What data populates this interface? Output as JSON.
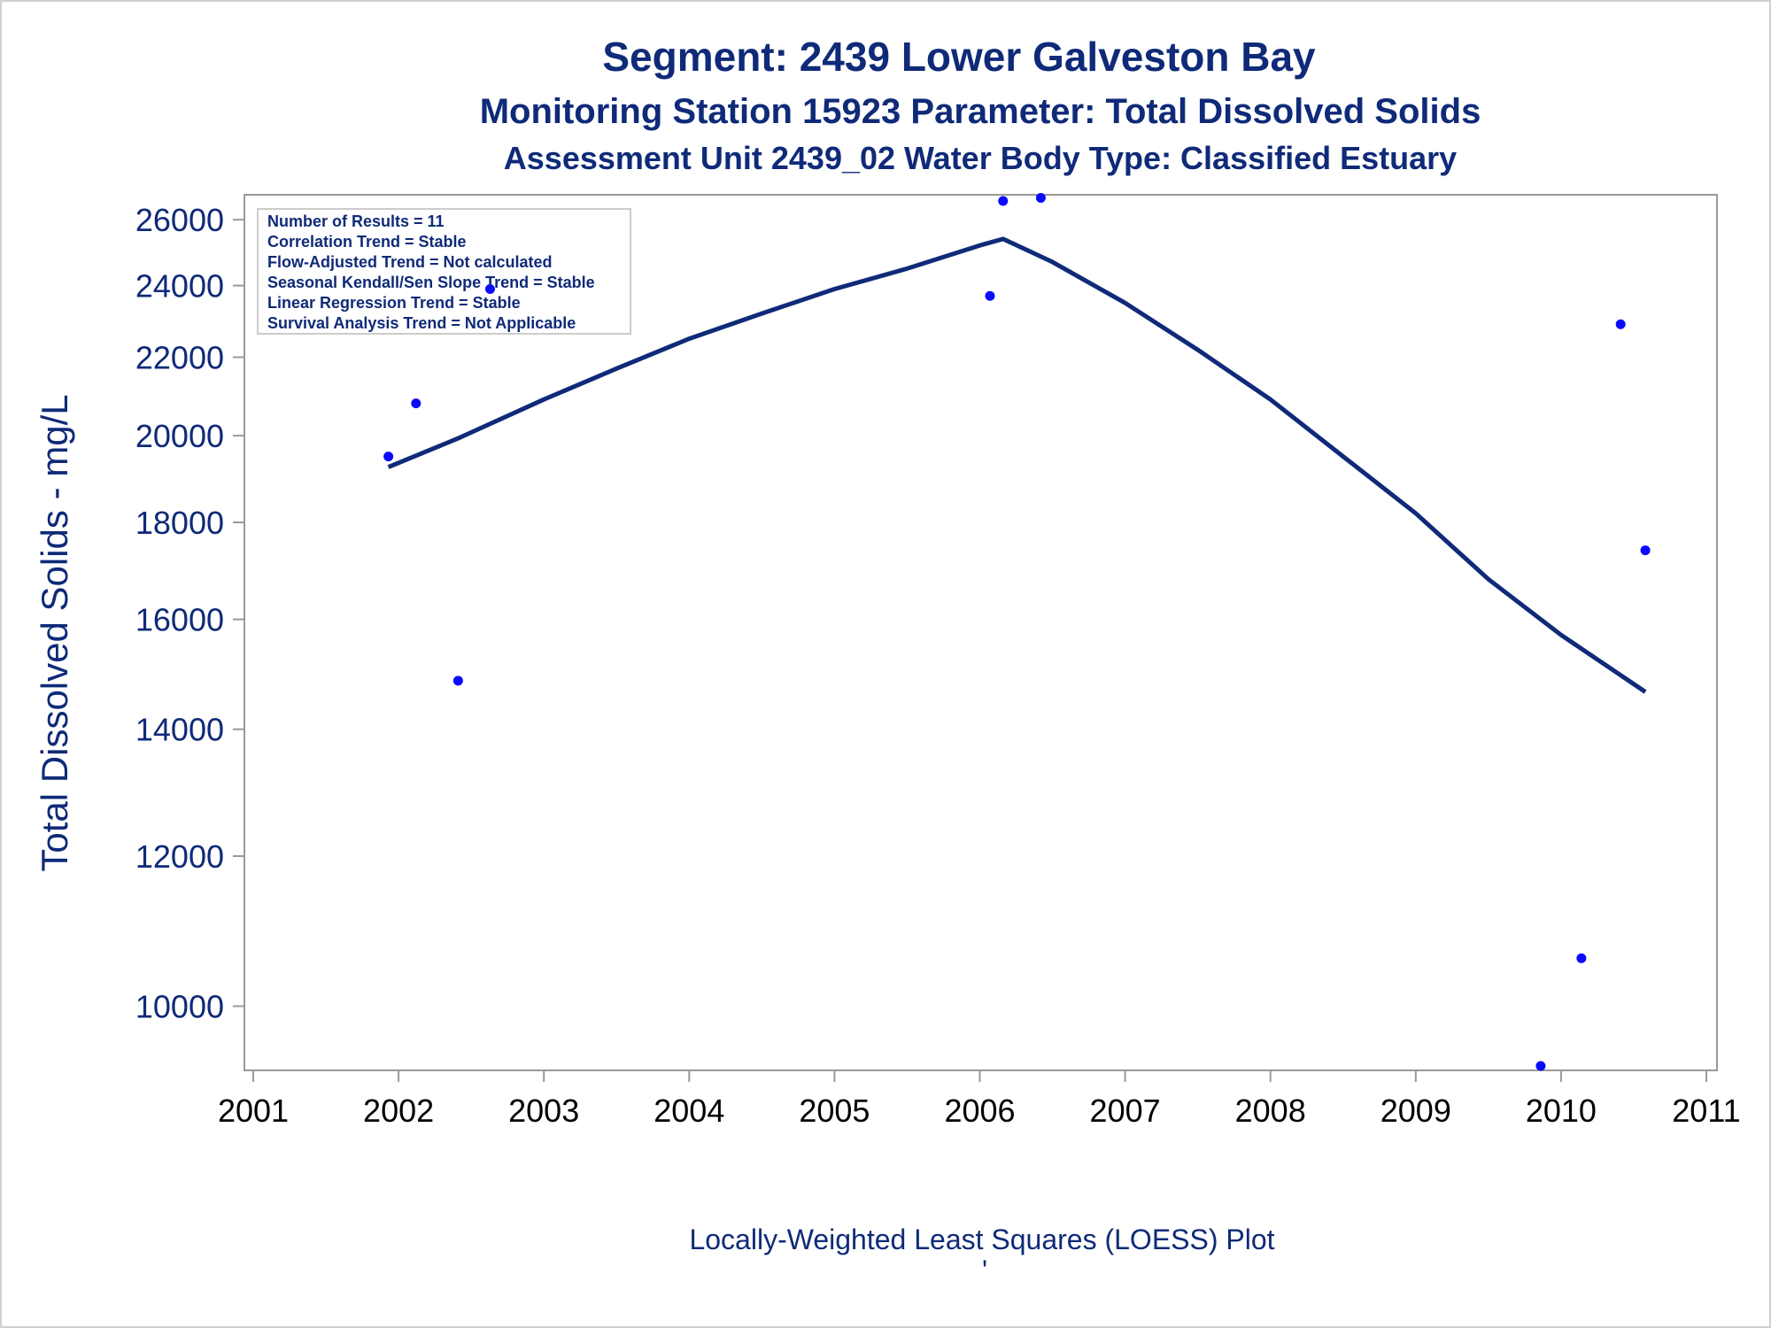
{
  "chart_data": {
    "type": "scatter",
    "title": "Segment: 2439  Lower Galveston Bay",
    "subtitle": "Monitoring Station 15923 Parameter: Total Dissolved Solids",
    "subtitle2": "Assessment Unit 2439_02   Water Body Type: Classified Estuary",
    "xlabel": "",
    "ylabel": "Total Dissolved Solids - mg/L",
    "footer": "Locally-Weighted Least Squares (LOESS) Plot",
    "footer_mark": "'",
    "y_scale": "log",
    "xlim": [
      2001,
      2011
    ],
    "ylim": [
      9250,
      26800
    ],
    "x_ticks": [
      "2001",
      "2002",
      "2003",
      "2004",
      "2005",
      "2006",
      "2007",
      "2008",
      "2009",
      "2010",
      "2011"
    ],
    "y_ticks": [
      10000,
      12000,
      14000,
      16000,
      18000,
      20000,
      22000,
      24000,
      26000
    ],
    "grid": false,
    "legend_position": "top-left",
    "stats": [
      "Number of Results = 11",
      "Correlation Trend = Stable",
      "Flow-Adjusted Trend = Not calculated",
      "Seasonal Kendall/Sen Slope Trend = Stable",
      "Linear Regression Trend = Stable",
      "Survival Analysis Trend = Not Applicable"
    ],
    "points": [
      {
        "x": 2001.93,
        "y": 19500
      },
      {
        "x": 2002.12,
        "y": 20800
      },
      {
        "x": 2002.41,
        "y": 14850
      },
      {
        "x": 2002.63,
        "y": 23900
      },
      {
        "x": 2006.07,
        "y": 23700
      },
      {
        "x": 2006.16,
        "y": 26600
      },
      {
        "x": 2006.42,
        "y": 26700
      },
      {
        "x": 2009.86,
        "y": 9300
      },
      {
        "x": 2010.14,
        "y": 10600
      },
      {
        "x": 2010.41,
        "y": 22900
      },
      {
        "x": 2010.58,
        "y": 17400
      }
    ],
    "loess_curve": [
      {
        "x": 2001.93,
        "y": 19250
      },
      {
        "x": 2002.42,
        "y": 19950
      },
      {
        "x": 2003.0,
        "y": 20900
      },
      {
        "x": 2003.5,
        "y": 21700
      },
      {
        "x": 2004.0,
        "y": 22500
      },
      {
        "x": 2004.5,
        "y": 23200
      },
      {
        "x": 2005.0,
        "y": 23900
      },
      {
        "x": 2005.5,
        "y": 24500
      },
      {
        "x": 2006.0,
        "y": 25200
      },
      {
        "x": 2006.16,
        "y": 25400
      },
      {
        "x": 2006.5,
        "y": 24700
      },
      {
        "x": 2007.0,
        "y": 23500
      },
      {
        "x": 2007.5,
        "y": 22200
      },
      {
        "x": 2008.0,
        "y": 20900
      },
      {
        "x": 2008.5,
        "y": 19500
      },
      {
        "x": 2009.0,
        "y": 18200
      },
      {
        "x": 2009.5,
        "y": 16800
      },
      {
        "x": 2010.0,
        "y": 15700
      },
      {
        "x": 2010.58,
        "y": 14650
      }
    ],
    "colors": {
      "text": "#0f2a78",
      "curve": "#0f2a78",
      "points": "#0a0aff",
      "axis": "#999999",
      "x_tick_text": "#000000"
    }
  }
}
